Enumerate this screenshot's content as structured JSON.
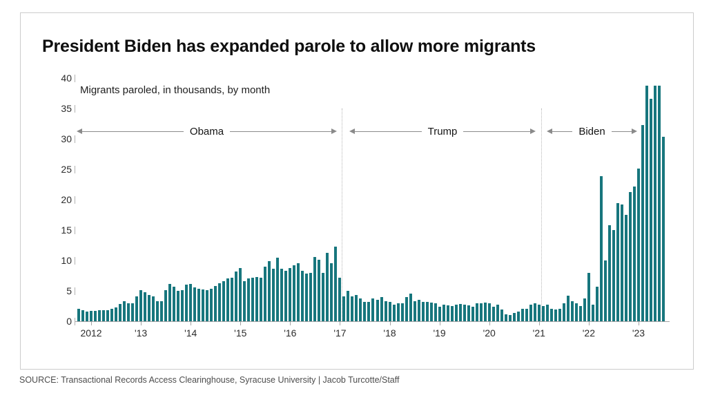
{
  "chart_data": {
    "type": "bar",
    "title": "President Biden has expanded parole to allow more migrants",
    "subtitle": "Migrants paroled, in thousands, by month",
    "unit": "thousands of migrants paroled per month",
    "start_month": "2011-10",
    "values": [
      2.1,
      1.8,
      1.6,
      1.7,
      1.75,
      1.8,
      1.8,
      1.85,
      2.0,
      2.3,
      2.8,
      3.3,
      3.0,
      2.9,
      4.1,
      5.1,
      4.8,
      4.3,
      4.1,
      3.3,
      3.3,
      5.1,
      6.1,
      5.7,
      5.0,
      5.1,
      6.0,
      6.1,
      5.6,
      5.3,
      5.2,
      5.1,
      5.3,
      5.8,
      6.2,
      6.6,
      7.1,
      7.2,
      8.2,
      8.8,
      6.6,
      7.0,
      7.2,
      7.3,
      7.2,
      9.0,
      9.9,
      8.6,
      10.4,
      8.6,
      8.3,
      8.8,
      9.2,
      9.6,
      8.3,
      7.8,
      8.0,
      10.6,
      10.1,
      8.0,
      11.3,
      9.5,
      12.3,
      7.2,
      4.1,
      5.0,
      4.1,
      4.3,
      3.8,
      3.2,
      3.2,
      3.7,
      3.5,
      4.0,
      3.3,
      3.2,
      2.7,
      3.0,
      3.0,
      4.0,
      4.5,
      3.3,
      3.5,
      3.2,
      3.2,
      3.1,
      2.9,
      2.4,
      2.7,
      2.6,
      2.5,
      2.7,
      2.8,
      2.7,
      2.6,
      2.4,
      2.9,
      3.0,
      3.1,
      3.0,
      2.4,
      2.7,
      1.9,
      1.1,
      1.0,
      1.4,
      1.6,
      2.0,
      2.1,
      2.7,
      2.9,
      2.7,
      2.5,
      2.7,
      2.0,
      1.9,
      2.1,
      2.9,
      4.2,
      3.3,
      2.9,
      2.5,
      3.7,
      7.9,
      2.7,
      5.7,
      23.9,
      10.0,
      15.8,
      15.0,
      19.4,
      19.2,
      17.5,
      21.2,
      22.2,
      25.1,
      32.3,
      38.7,
      36.6,
      38.8,
      38.8,
      30.3
    ],
    "ylim": [
      0,
      40
    ],
    "y_ticks": [
      0,
      5,
      10,
      15,
      20,
      25,
      30,
      35,
      40
    ],
    "x_tick_labels": [
      "2012",
      "'13",
      "'14",
      "'15",
      "'16",
      "'17",
      "'18",
      "'19",
      "'20",
      "'21",
      "'22",
      "'23"
    ],
    "eras": [
      {
        "label": "Obama",
        "from": "2011-10",
        "to": "2017-01"
      },
      {
        "label": "Trump",
        "from": "2017-02",
        "to": "2021-01"
      },
      {
        "label": "Biden",
        "from": "2021-02",
        "to": "2023-07"
      }
    ],
    "bar_color": "#17767d",
    "grid": false,
    "legend": "none"
  },
  "source": {
    "text": "SOURCE: Transactional Records Access Clearinghouse, Syracuse University | Jacob Turcotte/Staff"
  }
}
